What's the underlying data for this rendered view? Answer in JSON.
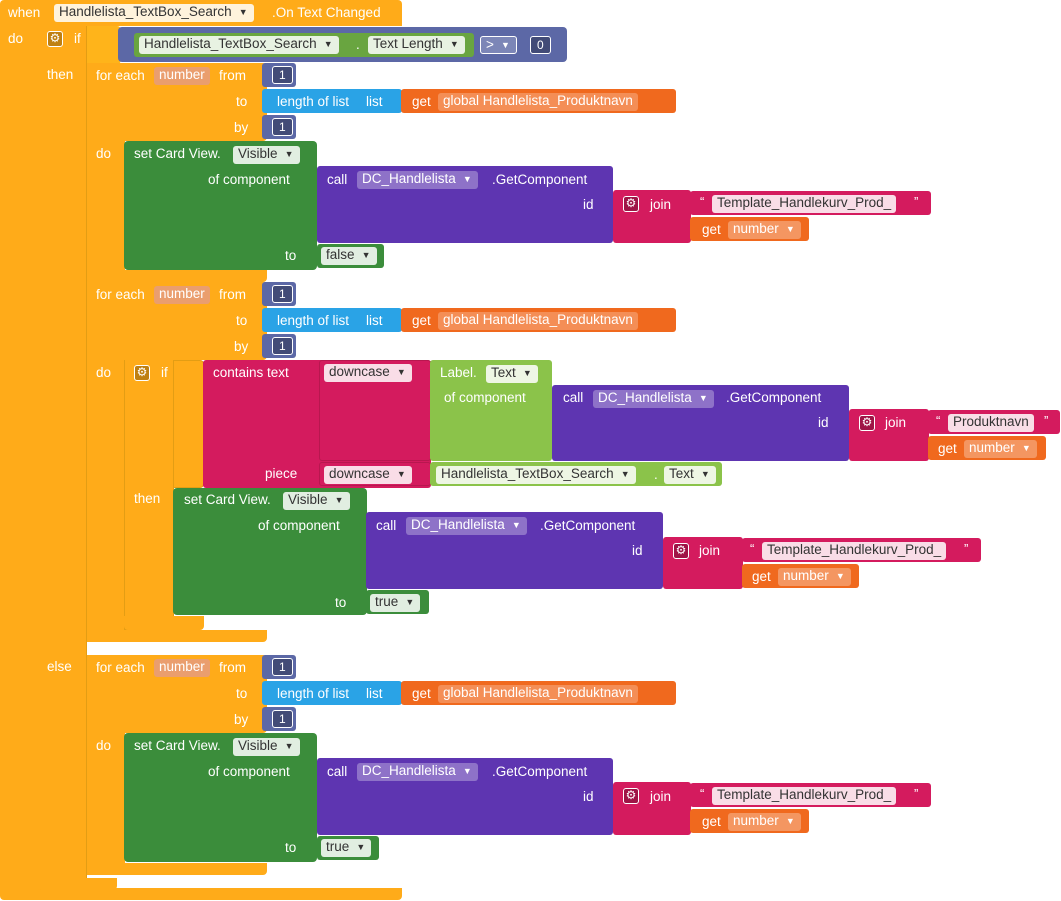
{
  "event": {
    "when": "when",
    "component": "Handlelista_TextBox_Search",
    "event_name": ".On Text Changed",
    "do": "do"
  },
  "if1": {
    "if": "if",
    "then": "then",
    "else": "else",
    "cond_component": "Handlelista_TextBox_Search",
    "dot": ".",
    "cond_prop": "Text Length",
    "op": ">",
    "cmp": "0"
  },
  "loop": {
    "for_each": "for each",
    "var": "number",
    "from": "from",
    "to": "to",
    "by": "by",
    "do": "do",
    "from_val": "1",
    "by_val": "1",
    "length_of_list": "length of list",
    "list": "list",
    "get": "get",
    "global": "global Handlelista_Produktnavn"
  },
  "setcard": {
    "set": "set Card View.",
    "prop": "Visible",
    "of_component": "of component",
    "to": "to",
    "false": "false",
    "true": "true"
  },
  "call": {
    "call": "call",
    "component": "DC_Handlelista",
    "method": ".GetComponent",
    "id": "id",
    "join": "join",
    "template": "Template_Handlekurv_Prod_",
    "produktnavn": "Produktnavn",
    "get": "get",
    "var": "number",
    "quote_open": "“",
    "quote_close": "”"
  },
  "if2": {
    "if": "if",
    "then": "then",
    "contains_text": "contains  text",
    "piece": "piece",
    "downcase": "downcase",
    "label": "Label.",
    "text": "Text",
    "of_component": "of component",
    "search": "Handlelista_TextBox_Search",
    "dot": ".",
    "search_prop": "Text"
  }
}
